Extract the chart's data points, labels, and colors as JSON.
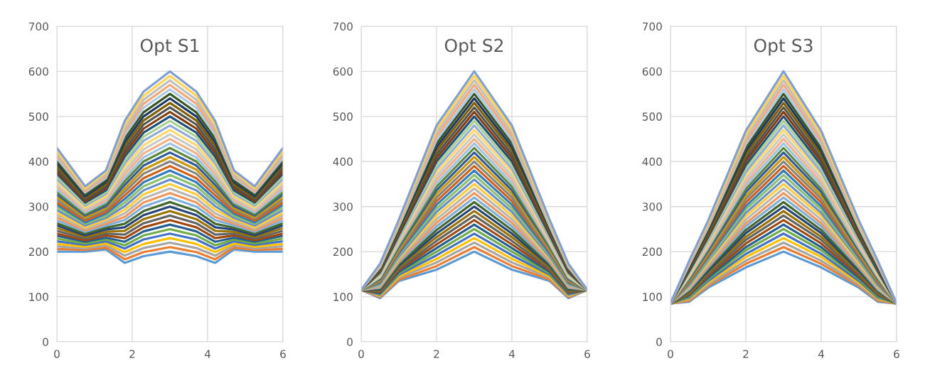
{
  "chart_data": [
    {
      "type": "line",
      "title": "Opt S1",
      "x": [
        0,
        0.75,
        1.3,
        1.8,
        2.3,
        3,
        3.7,
        4.2,
        4.7,
        5.25,
        6
      ],
      "xlim": [
        0,
        6
      ],
      "xticks": [
        0,
        2,
        4,
        6
      ],
      "ylim": [
        0,
        700
      ],
      "yticks": [
        0,
        100,
        200,
        300,
        400,
        500,
        600,
        700
      ],
      "grid": true,
      "series": [
        {
          "color": "#5b9bd5",
          "values": [
            200,
            200,
            205,
            175,
            190,
            200,
            190,
            175,
            205,
            200,
            200
          ]
        },
        {
          "color": "#ed7d31",
          "values": [
            206,
            204,
            209,
            183,
            199,
            210,
            199,
            183,
            209,
            204,
            206
          ]
        },
        {
          "color": "#a5a5a5",
          "values": [
            212,
            207,
            214,
            191,
            208,
            220,
            208,
            191,
            214,
            207,
            212
          ]
        },
        {
          "color": "#ffc000",
          "values": [
            217,
            211,
            218,
            199,
            217,
            230,
            217,
            199,
            218,
            211,
            217
          ]
        },
        {
          "color": "#4472c4",
          "values": [
            223,
            215,
            223,
            207,
            227,
            240,
            227,
            207,
            223,
            215,
            223
          ]
        },
        {
          "color": "#70ad47",
          "values": [
            229,
            218,
            227,
            214,
            236,
            250,
            236,
            214,
            227,
            218,
            229
          ]
        },
        {
          "color": "#255e91",
          "values": [
            235,
            222,
            231,
            222,
            245,
            260,
            245,
            222,
            231,
            222,
            235
          ]
        },
        {
          "color": "#9e480e",
          "values": [
            240,
            225,
            236,
            230,
            254,
            270,
            254,
            230,
            236,
            225,
            240
          ]
        },
        {
          "color": "#636363",
          "values": [
            246,
            229,
            240,
            238,
            263,
            280,
            263,
            238,
            240,
            229,
            246
          ]
        },
        {
          "color": "#997300",
          "values": [
            252,
            233,
            244,
            246,
            272,
            290,
            272,
            246,
            244,
            233,
            252
          ]
        },
        {
          "color": "#264478",
          "values": [
            258,
            236,
            249,
            254,
            281,
            300,
            281,
            254,
            249,
            236,
            258
          ]
        },
        {
          "color": "#43682b",
          "values": [
            263,
            240,
            253,
            262,
            290,
            310,
            290,
            262,
            253,
            240,
            263
          ]
        },
        {
          "color": "#7cafdd",
          "values": [
            269,
            244,
            258,
            270,
            300,
            320,
            300,
            270,
            258,
            244,
            269
          ]
        },
        {
          "color": "#f1975a",
          "values": [
            275,
            247,
            262,
            277,
            309,
            330,
            309,
            277,
            262,
            247,
            275
          ]
        },
        {
          "color": "#b7b7b7",
          "values": [
            281,
            251,
            266,
            285,
            318,
            340,
            318,
            285,
            266,
            251,
            281
          ]
        },
        {
          "color": "#ffcd33",
          "values": [
            286,
            254,
            271,
            293,
            327,
            350,
            327,
            293,
            271,
            254,
            286
          ]
        },
        {
          "color": "#698ed0",
          "values": [
            292,
            258,
            275,
            301,
            336,
            360,
            336,
            301,
            275,
            258,
            292
          ]
        },
        {
          "color": "#8cc168",
          "values": [
            298,
            262,
            279,
            309,
            345,
            370,
            345,
            309,
            279,
            262,
            298
          ]
        },
        {
          "color": "#327dc2",
          "values": [
            304,
            265,
            284,
            317,
            354,
            380,
            354,
            317,
            284,
            265,
            304
          ]
        },
        {
          "color": "#d26012",
          "values": [
            309,
            269,
            288,
            325,
            363,
            390,
            363,
            325,
            288,
            269,
            309
          ]
        },
        {
          "color": "#848484",
          "values": [
            315,
            273,
            293,
            333,
            373,
            400,
            373,
            333,
            293,
            273,
            315
          ]
        },
        {
          "color": "#cc9a00",
          "values": [
            321,
            276,
            297,
            340,
            382,
            410,
            382,
            340,
            297,
            276,
            321
          ]
        },
        {
          "color": "#335aa1",
          "values": [
            327,
            280,
            301,
            348,
            391,
            420,
            391,
            348,
            301,
            280,
            327
          ]
        },
        {
          "color": "#5a8a39",
          "values": [
            332,
            283,
            306,
            356,
            400,
            430,
            400,
            356,
            306,
            283,
            332
          ]
        },
        {
          "color": "#9dc3e6",
          "values": [
            338,
            287,
            310,
            364,
            409,
            440,
            409,
            364,
            310,
            287,
            338
          ]
        },
        {
          "color": "#f4b183",
          "values": [
            344,
            291,
            314,
            372,
            418,
            450,
            418,
            372,
            314,
            291,
            344
          ]
        },
        {
          "color": "#c9c9c9",
          "values": [
            350,
            294,
            319,
            380,
            427,
            460,
            427,
            380,
            319,
            294,
            350
          ]
        },
        {
          "color": "#ffd966",
          "values": [
            355,
            298,
            323,
            388,
            436,
            470,
            436,
            388,
            323,
            298,
            355
          ]
        },
        {
          "color": "#8faadc",
          "values": [
            361,
            302,
            328,
            396,
            446,
            480,
            446,
            396,
            328,
            302,
            361
          ]
        },
        {
          "color": "#a9d18e",
          "values": [
            367,
            305,
            332,
            403,
            455,
            490,
            455,
            403,
            332,
            305,
            367
          ]
        },
        {
          "color": "#1f4e79",
          "values": [
            373,
            309,
            336,
            411,
            464,
            500,
            464,
            411,
            336,
            309,
            373
          ]
        },
        {
          "color": "#843c0c",
          "values": [
            378,
            312,
            341,
            419,
            473,
            510,
            473,
            419,
            341,
            312,
            378
          ]
        },
        {
          "color": "#525252",
          "values": [
            384,
            316,
            345,
            427,
            482,
            520,
            482,
            427,
            345,
            316,
            384
          ]
        },
        {
          "color": "#7f6000",
          "values": [
            390,
            320,
            349,
            435,
            491,
            530,
            491,
            435,
            349,
            320,
            390
          ]
        },
        {
          "color": "#203864",
          "values": [
            396,
            323,
            354,
            443,
            500,
            540,
            500,
            443,
            354,
            323,
            396
          ]
        },
        {
          "color": "#385723",
          "values": [
            401,
            327,
            358,
            451,
            509,
            550,
            509,
            451,
            358,
            327,
            401
          ]
        },
        {
          "color": "#a9c9e8",
          "values": [
            407,
            331,
            363,
            459,
            519,
            560,
            519,
            459,
            363,
            331,
            407
          ]
        },
        {
          "color": "#f4a877",
          "values": [
            413,
            334,
            367,
            466,
            528,
            570,
            528,
            466,
            367,
            334,
            413
          ]
        },
        {
          "color": "#bfbfbf",
          "values": [
            419,
            338,
            371,
            474,
            537,
            580,
            537,
            474,
            371,
            338,
            419
          ]
        },
        {
          "color": "#ffd34d",
          "values": [
            424,
            341,
            376,
            482,
            546,
            590,
            546,
            482,
            376,
            341,
            424
          ]
        },
        {
          "color": "#7f9fd6",
          "values": [
            430,
            345,
            380,
            490,
            555,
            600,
            555,
            490,
            380,
            345,
            430
          ]
        }
      ]
    },
    {
      "type": "line",
      "title": "Opt S2",
      "x": [
        0,
        0.5,
        1,
        2,
        3,
        4,
        5,
        5.5,
        6
      ],
      "xlim": [
        0,
        6
      ],
      "xticks": [
        0,
        2,
        4,
        6
      ],
      "ylim": [
        0,
        700
      ],
      "yticks": [
        0,
        100,
        200,
        300,
        400,
        500,
        600,
        700
      ],
      "grid": true,
      "series": [
        {
          "color": "#5b9bd5",
          "values": [
            115,
            97,
            135,
            160,
            200,
            160,
            135,
            97,
            115
          ]
        },
        {
          "color": "#ed7d31",
          "values": [
            115,
            99,
            138,
            168,
            210,
            168,
            138,
            99,
            115
          ]
        },
        {
          "color": "#a5a5a5",
          "values": [
            115,
            101,
            142,
            176,
            220,
            176,
            142,
            101,
            115
          ]
        },
        {
          "color": "#ffc000",
          "values": [
            115,
            103,
            145,
            184,
            230,
            184,
            145,
            103,
            115
          ]
        },
        {
          "color": "#4472c4",
          "values": [
            115,
            105,
            149,
            192,
            240,
            192,
            149,
            105,
            115
          ]
        },
        {
          "color": "#70ad47",
          "values": [
            115,
            107,
            152,
            200,
            250,
            200,
            152,
            107,
            115
          ]
        },
        {
          "color": "#255e91",
          "values": [
            115,
            108,
            155,
            208,
            260,
            208,
            155,
            108,
            115
          ]
        },
        {
          "color": "#9e480e",
          "values": [
            115,
            110,
            159,
            216,
            270,
            216,
            159,
            110,
            115
          ]
        },
        {
          "color": "#636363",
          "values": [
            115,
            112,
            162,
            224,
            280,
            224,
            162,
            112,
            115
          ]
        },
        {
          "color": "#997300",
          "values": [
            115,
            114,
            166,
            232,
            290,
            232,
            166,
            114,
            115
          ]
        },
        {
          "color": "#264478",
          "values": [
            115,
            116,
            169,
            240,
            300,
            240,
            169,
            116,
            115
          ]
        },
        {
          "color": "#43682b",
          "values": [
            115,
            118,
            172,
            248,
            310,
            248,
            172,
            118,
            115
          ]
        },
        {
          "color": "#7cafdd",
          "values": [
            115,
            120,
            176,
            256,
            320,
            256,
            176,
            120,
            115
          ]
        },
        {
          "color": "#f1975a",
          "values": [
            115,
            122,
            179,
            264,
            330,
            264,
            179,
            122,
            115
          ]
        },
        {
          "color": "#b7b7b7",
          "values": [
            115,
            124,
            183,
            272,
            340,
            272,
            183,
            124,
            115
          ]
        },
        {
          "color": "#ffcd33",
          "values": [
            115,
            126,
            186,
            280,
            350,
            280,
            186,
            126,
            115
          ]
        },
        {
          "color": "#698ed0",
          "values": [
            115,
            127,
            189,
            288,
            360,
            288,
            189,
            127,
            115
          ]
        },
        {
          "color": "#8cc168",
          "values": [
            115,
            129,
            193,
            296,
            370,
            296,
            193,
            129,
            115
          ]
        },
        {
          "color": "#327dc2",
          "values": [
            115,
            131,
            196,
            304,
            380,
            304,
            196,
            131,
            115
          ]
        },
        {
          "color": "#d26012",
          "values": [
            115,
            133,
            200,
            312,
            390,
            312,
            200,
            133,
            115
          ]
        },
        {
          "color": "#848484",
          "values": [
            115,
            135,
            203,
            320,
            400,
            320,
            203,
            135,
            115
          ]
        },
        {
          "color": "#cc9a00",
          "values": [
            115,
            137,
            206,
            328,
            410,
            328,
            206,
            137,
            115
          ]
        },
        {
          "color": "#335aa1",
          "values": [
            115,
            139,
            210,
            336,
            420,
            336,
            210,
            139,
            115
          ]
        },
        {
          "color": "#5a8a39",
          "values": [
            115,
            141,
            213,
            344,
            430,
            344,
            213,
            141,
            115
          ]
        },
        {
          "color": "#9dc3e6",
          "values": [
            115,
            143,
            217,
            352,
            440,
            352,
            217,
            143,
            115
          ]
        },
        {
          "color": "#f4b183",
          "values": [
            115,
            145,
            220,
            360,
            450,
            360,
            220,
            145,
            115
          ]
        },
        {
          "color": "#c9c9c9",
          "values": [
            115,
            146,
            223,
            368,
            460,
            368,
            223,
            146,
            115
          ]
        },
        {
          "color": "#ffd966",
          "values": [
            115,
            148,
            227,
            376,
            470,
            376,
            227,
            148,
            115
          ]
        },
        {
          "color": "#8faadc",
          "values": [
            115,
            150,
            230,
            384,
            480,
            384,
            230,
            150,
            115
          ]
        },
        {
          "color": "#a9d18e",
          "values": [
            115,
            152,
            234,
            392,
            490,
            392,
            234,
            152,
            115
          ]
        },
        {
          "color": "#1f4e79",
          "values": [
            115,
            154,
            237,
            400,
            500,
            400,
            237,
            154,
            115
          ]
        },
        {
          "color": "#843c0c",
          "values": [
            115,
            156,
            240,
            408,
            510,
            408,
            240,
            156,
            115
          ]
        },
        {
          "color": "#525252",
          "values": [
            115,
            158,
            244,
            416,
            520,
            416,
            244,
            158,
            115
          ]
        },
        {
          "color": "#7f6000",
          "values": [
            115,
            160,
            247,
            424,
            530,
            424,
            247,
            160,
            115
          ]
        },
        {
          "color": "#203864",
          "values": [
            115,
            162,
            251,
            432,
            540,
            432,
            251,
            162,
            115
          ]
        },
        {
          "color": "#385723",
          "values": [
            115,
            164,
            254,
            440,
            550,
            440,
            254,
            164,
            115
          ]
        },
        {
          "color": "#a9c9e8",
          "values": [
            115,
            165,
            257,
            448,
            560,
            448,
            257,
            165,
            115
          ]
        },
        {
          "color": "#f4a877",
          "values": [
            115,
            167,
            261,
            456,
            570,
            456,
            261,
            167,
            115
          ]
        },
        {
          "color": "#bfbfbf",
          "values": [
            115,
            169,
            264,
            464,
            580,
            464,
            264,
            169,
            115
          ]
        },
        {
          "color": "#ffd34d",
          "values": [
            115,
            171,
            268,
            472,
            590,
            472,
            268,
            171,
            115
          ]
        },
        {
          "color": "#7f9fd6",
          "values": [
            115,
            173,
            271,
            480,
            600,
            480,
            271,
            173,
            115
          ]
        }
      ]
    },
    {
      "type": "line",
      "title": "Opt S3",
      "x": [
        0,
        0.5,
        1,
        2,
        3,
        4,
        5,
        5.5,
        6
      ],
      "xlim": [
        0,
        6
      ],
      "xticks": [
        0,
        2,
        4,
        6
      ],
      "ylim": [
        0,
        700
      ],
      "yticks": [
        0,
        100,
        200,
        300,
        400,
        500,
        600,
        700
      ],
      "grid": true,
      "series": [
        {
          "color": "#5b9bd5",
          "values": [
            85,
            89,
            120,
            165,
            200,
            165,
            120,
            89,
            85
          ]
        },
        {
          "color": "#ed7d31",
          "values": [
            85,
            91,
            124,
            173,
            210,
            173,
            124,
            91,
            85
          ]
        },
        {
          "color": "#a5a5a5",
          "values": [
            85,
            94,
            127,
            180,
            220,
            180,
            127,
            94,
            85
          ]
        },
        {
          "color": "#ffc000",
          "values": [
            85,
            96,
            131,
            188,
            230,
            188,
            131,
            96,
            85
          ]
        },
        {
          "color": "#4472c4",
          "values": [
            85,
            98,
            135,
            195,
            240,
            195,
            135,
            98,
            85
          ]
        },
        {
          "color": "#70ad47",
          "values": [
            85,
            100,
            139,
            203,
            250,
            203,
            139,
            100,
            85
          ]
        },
        {
          "color": "#255e91",
          "values": [
            85,
            103,
            142,
            210,
            260,
            210,
            142,
            103,
            85
          ]
        },
        {
          "color": "#9e480e",
          "values": [
            85,
            105,
            146,
            218,
            270,
            218,
            146,
            105,
            85
          ]
        },
        {
          "color": "#636363",
          "values": [
            85,
            107,
            150,
            226,
            280,
            226,
            150,
            107,
            85
          ]
        },
        {
          "color": "#997300",
          "values": [
            85,
            109,
            154,
            233,
            290,
            233,
            154,
            109,
            85
          ]
        },
        {
          "color": "#264478",
          "values": [
            85,
            112,
            157,
            241,
            300,
            241,
            157,
            112,
            85
          ]
        },
        {
          "color": "#43682b",
          "values": [
            85,
            114,
            161,
            248,
            310,
            248,
            161,
            114,
            85
          ]
        },
        {
          "color": "#7cafdd",
          "values": [
            85,
            116,
            165,
            256,
            320,
            256,
            165,
            116,
            85
          ]
        },
        {
          "color": "#f1975a",
          "values": [
            85,
            119,
            168,
            263,
            330,
            263,
            168,
            119,
            85
          ]
        },
        {
          "color": "#b7b7b7",
          "values": [
            85,
            121,
            172,
            271,
            340,
            271,
            172,
            121,
            85
          ]
        },
        {
          "color": "#ffcd33",
          "values": [
            85,
            123,
            176,
            279,
            350,
            279,
            176,
            123,
            85
          ]
        },
        {
          "color": "#698ed0",
          "values": [
            85,
            125,
            180,
            286,
            360,
            286,
            180,
            125,
            85
          ]
        },
        {
          "color": "#8cc168",
          "values": [
            85,
            128,
            183,
            294,
            370,
            294,
            183,
            128,
            85
          ]
        },
        {
          "color": "#327dc2",
          "values": [
            85,
            130,
            187,
            301,
            380,
            301,
            187,
            130,
            85
          ]
        },
        {
          "color": "#d26012",
          "values": [
            85,
            132,
            191,
            309,
            390,
            309,
            191,
            132,
            85
          ]
        },
        {
          "color": "#848484",
          "values": [
            85,
            135,
            195,
            317,
            400,
            317,
            195,
            135,
            85
          ]
        },
        {
          "color": "#cc9a00",
          "values": [
            85,
            137,
            198,
            324,
            410,
            324,
            198,
            137,
            85
          ]
        },
        {
          "color": "#335aa1",
          "values": [
            85,
            139,
            202,
            332,
            420,
            332,
            202,
            139,
            85
          ]
        },
        {
          "color": "#5a8a39",
          "values": [
            85,
            141,
            206,
            339,
            430,
            339,
            206,
            141,
            85
          ]
        },
        {
          "color": "#9dc3e6",
          "values": [
            85,
            144,
            209,
            347,
            440,
            347,
            209,
            144,
            85
          ]
        },
        {
          "color": "#f4b183",
          "values": [
            85,
            146,
            213,
            354,
            450,
            354,
            213,
            146,
            85
          ]
        },
        {
          "color": "#c9c9c9",
          "values": [
            85,
            148,
            217,
            362,
            460,
            362,
            217,
            148,
            85
          ]
        },
        {
          "color": "#ffd966",
          "values": [
            85,
            150,
            221,
            370,
            470,
            370,
            221,
            150,
            85
          ]
        },
        {
          "color": "#8faadc",
          "values": [
            85,
            153,
            224,
            377,
            480,
            377,
            224,
            153,
            85
          ]
        },
        {
          "color": "#a9d18e",
          "values": [
            85,
            155,
            228,
            385,
            490,
            385,
            228,
            155,
            85
          ]
        },
        {
          "color": "#1f4e79",
          "values": [
            85,
            157,
            232,
            392,
            500,
            392,
            232,
            157,
            85
          ]
        },
        {
          "color": "#843c0c",
          "values": [
            85,
            160,
            235,
            400,
            510,
            400,
            235,
            160,
            85
          ]
        },
        {
          "color": "#525252",
          "values": [
            85,
            162,
            239,
            407,
            520,
            407,
            239,
            162,
            85
          ]
        },
        {
          "color": "#7f6000",
          "values": [
            85,
            164,
            243,
            415,
            530,
            415,
            243,
            164,
            85
          ]
        },
        {
          "color": "#203864",
          "values": [
            85,
            166,
            247,
            423,
            540,
            423,
            247,
            166,
            85
          ]
        },
        {
          "color": "#385723",
          "values": [
            85,
            169,
            250,
            430,
            550,
            430,
            250,
            169,
            85
          ]
        },
        {
          "color": "#a9c9e8",
          "values": [
            85,
            171,
            254,
            438,
            560,
            438,
            254,
            171,
            85
          ]
        },
        {
          "color": "#f4a877",
          "values": [
            85,
            173,
            258,
            445,
            570,
            445,
            258,
            173,
            85
          ]
        },
        {
          "color": "#bfbfbf",
          "values": [
            85,
            175,
            262,
            453,
            580,
            453,
            262,
            175,
            85
          ]
        },
        {
          "color": "#ffd34d",
          "values": [
            85,
            178,
            265,
            460,
            590,
            460,
            265,
            178,
            85
          ]
        },
        {
          "color": "#7f9fd6",
          "values": [
            85,
            180,
            269,
            468,
            600,
            468,
            269,
            180,
            85
          ]
        }
      ]
    }
  ]
}
